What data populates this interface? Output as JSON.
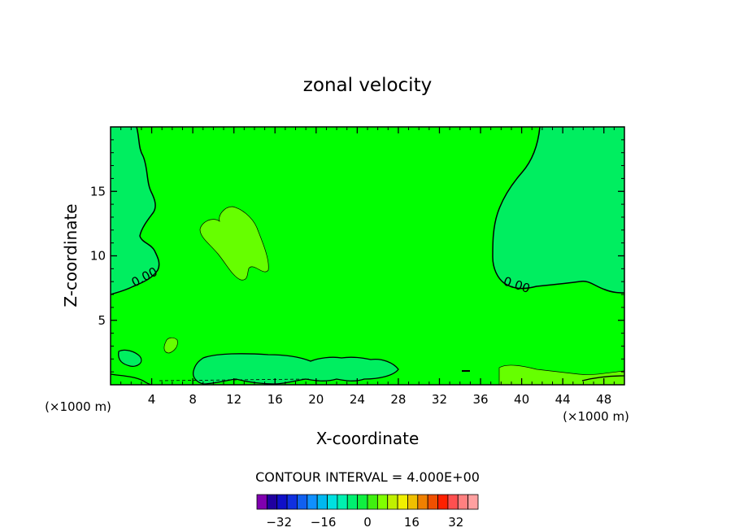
{
  "chart_data": {
    "type": "contour",
    "title": "zonal velocity",
    "xlabel": "X-coordinate",
    "ylabel": "Z-coordinate",
    "x_unit": "(×1000 m)",
    "z_unit": "(×1000 m)",
    "xlim": [
      0,
      50
    ],
    "ylim": [
      0,
      20
    ],
    "x_ticks": [
      4,
      8,
      12,
      16,
      20,
      24,
      28,
      32,
      36,
      40,
      44,
      48
    ],
    "y_ticks": [
      5,
      10,
      15
    ],
    "contour_label": "0.00",
    "contour_interval_text": "CONTOUR INTERVAL = 4.000E+00",
    "colorbar": {
      "tick_labels": [
        "−32",
        "−16",
        "0",
        "16",
        "32"
      ],
      "tick_values": [
        -32,
        -16,
        0,
        16,
        32
      ],
      "range": [
        -40,
        40
      ],
      "colors": [
        "#8000b0",
        "#2000a0",
        "#1010c8",
        "#1030e0",
        "#1060f0",
        "#1090ff",
        "#00b8f0",
        "#00e0e0",
        "#00f0b0",
        "#00f070",
        "#10f040",
        "#40f010",
        "#80ff00",
        "#c0f000",
        "#f0f000",
        "#f0c000",
        "#f08000",
        "#f05000",
        "#ff2000",
        "#ff5050",
        "#ff8080",
        "#ffa0a0"
      ]
    },
    "field_colors": {
      "background": "#00ff00",
      "negative_0_to_-4": "#00ee60",
      "positive_0_to_4": "#66ff00"
    }
  }
}
